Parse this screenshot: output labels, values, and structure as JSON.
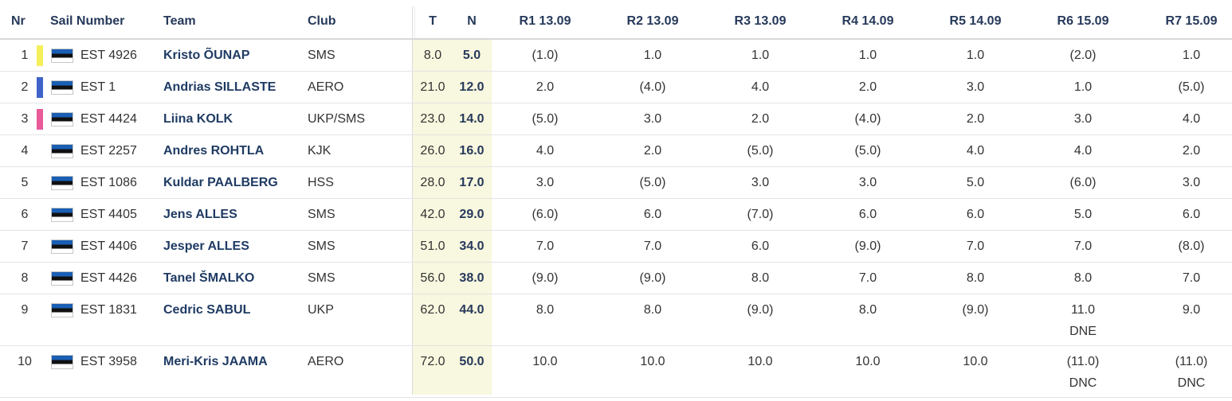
{
  "columns": {
    "nr": "Nr",
    "sail_number": "Sail Number",
    "team": "Team",
    "club": "Club",
    "total": "T",
    "net": "N",
    "races": [
      "R1 13.09",
      "R2 13.09",
      "R3 13.09",
      "R4 14.09",
      "R5 14.09",
      "R6 15.09",
      "R7 15.09"
    ]
  },
  "colors": {
    "yellow_marker": "#f5f05a",
    "blue_marker": "#3f63c9",
    "pink_marker": "#e85a9a",
    "header_text": "#26395a",
    "tn_background": "#f8f7df"
  },
  "flag_icon": "estonia-flag-icon",
  "rows": [
    {
      "nr": "1",
      "marker": "yellow",
      "sail": "EST 4926",
      "team": "Kristo ÕUNAP",
      "club": "SMS",
      "t": "8.0",
      "n": "5.0",
      "races": [
        {
          "s": "(1.0)"
        },
        {
          "s": "1.0"
        },
        {
          "s": "1.0"
        },
        {
          "s": "1.0"
        },
        {
          "s": "1.0"
        },
        {
          "s": "(2.0)"
        },
        {
          "s": "1.0"
        }
      ]
    },
    {
      "nr": "2",
      "marker": "blue",
      "sail": "EST 1",
      "team": "Andrias SILLASTE",
      "club": "AERO",
      "t": "21.0",
      "n": "12.0",
      "races": [
        {
          "s": "2.0"
        },
        {
          "s": "(4.0)"
        },
        {
          "s": "4.0"
        },
        {
          "s": "2.0"
        },
        {
          "s": "3.0"
        },
        {
          "s": "1.0"
        },
        {
          "s": "(5.0)"
        }
      ]
    },
    {
      "nr": "3",
      "marker": "pink",
      "sail": "EST 4424",
      "team": "Liina KOLK",
      "club": "UKP/SMS",
      "t": "23.0",
      "n": "14.0",
      "races": [
        {
          "s": "(5.0)"
        },
        {
          "s": "3.0"
        },
        {
          "s": "2.0"
        },
        {
          "s": "(4.0)"
        },
        {
          "s": "2.0"
        },
        {
          "s": "3.0"
        },
        {
          "s": "4.0"
        }
      ]
    },
    {
      "nr": "4",
      "marker": "",
      "sail": "EST 2257",
      "team": "Andres ROHTLA",
      "club": "KJK",
      "t": "26.0",
      "n": "16.0",
      "races": [
        {
          "s": "4.0"
        },
        {
          "s": "2.0"
        },
        {
          "s": "(5.0)"
        },
        {
          "s": "(5.0)"
        },
        {
          "s": "4.0"
        },
        {
          "s": "4.0"
        },
        {
          "s": "2.0"
        }
      ]
    },
    {
      "nr": "5",
      "marker": "",
      "sail": "EST 1086",
      "team": "Kuldar PAALBERG",
      "club": "HSS",
      "t": "28.0",
      "n": "17.0",
      "races": [
        {
          "s": "3.0"
        },
        {
          "s": "(5.0)"
        },
        {
          "s": "3.0"
        },
        {
          "s": "3.0"
        },
        {
          "s": "5.0"
        },
        {
          "s": "(6.0)"
        },
        {
          "s": "3.0"
        }
      ]
    },
    {
      "nr": "6",
      "marker": "",
      "sail": "EST 4405",
      "team": "Jens ALLES",
      "club": "SMS",
      "t": "42.0",
      "n": "29.0",
      "races": [
        {
          "s": "(6.0)"
        },
        {
          "s": "6.0"
        },
        {
          "s": "(7.0)"
        },
        {
          "s": "6.0"
        },
        {
          "s": "6.0"
        },
        {
          "s": "5.0"
        },
        {
          "s": "6.0"
        }
      ]
    },
    {
      "nr": "7",
      "marker": "",
      "sail": "EST 4406",
      "team": "Jesper ALLES",
      "club": "SMS",
      "t": "51.0",
      "n": "34.0",
      "races": [
        {
          "s": "7.0"
        },
        {
          "s": "7.0"
        },
        {
          "s": "6.0"
        },
        {
          "s": "(9.0)"
        },
        {
          "s": "7.0"
        },
        {
          "s": "7.0"
        },
        {
          "s": "(8.0)"
        }
      ]
    },
    {
      "nr": "8",
      "marker": "",
      "sail": "EST 4426",
      "team": "Tanel ŠMALKO",
      "club": "SMS",
      "t": "56.0",
      "n": "38.0",
      "races": [
        {
          "s": "(9.0)"
        },
        {
          "s": "(9.0)"
        },
        {
          "s": "8.0"
        },
        {
          "s": "7.0"
        },
        {
          "s": "8.0"
        },
        {
          "s": "8.0"
        },
        {
          "s": "7.0"
        }
      ]
    },
    {
      "nr": "9",
      "marker": "",
      "sail": "EST 1831",
      "team": "Cedric SABUL",
      "club": "UKP",
      "t": "62.0",
      "n": "44.0",
      "races": [
        {
          "s": "8.0"
        },
        {
          "s": "8.0"
        },
        {
          "s": "(9.0)"
        },
        {
          "s": "8.0"
        },
        {
          "s": "(9.0)"
        },
        {
          "s": "11.0",
          "c": "DNE"
        },
        {
          "s": "9.0"
        }
      ]
    },
    {
      "nr": "10",
      "marker": "",
      "sail": "EST 3958",
      "team": "Meri-Kris JAAMA",
      "club": "AERO",
      "t": "72.0",
      "n": "50.0",
      "races": [
        {
          "s": "10.0"
        },
        {
          "s": "10.0"
        },
        {
          "s": "10.0"
        },
        {
          "s": "10.0"
        },
        {
          "s": "10.0"
        },
        {
          "s": "(11.0)",
          "c": "DNC"
        },
        {
          "s": "(11.0)",
          "c": "DNC"
        }
      ]
    }
  ]
}
